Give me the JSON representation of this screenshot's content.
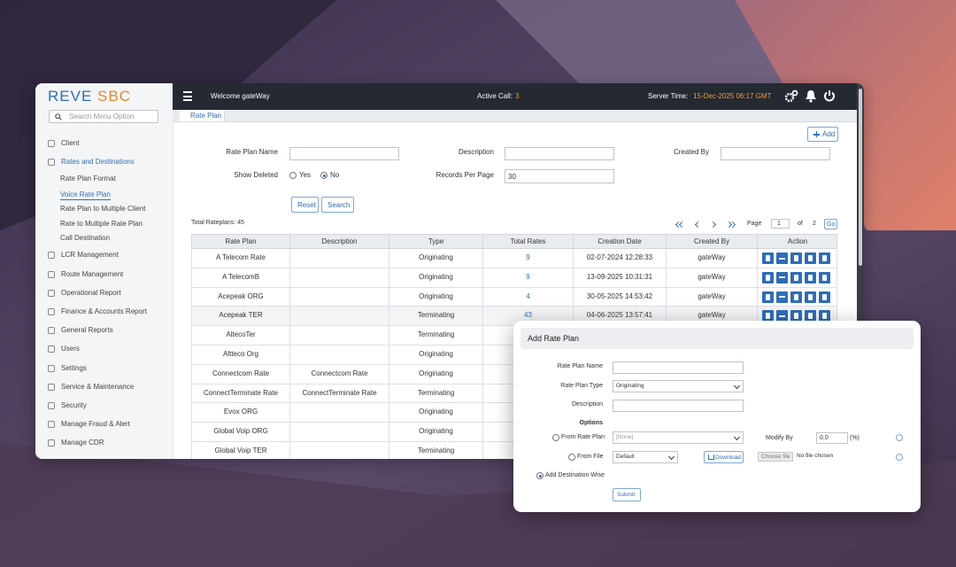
{
  "brand": {
    "name": "REVE",
    "suffix": "SBC"
  },
  "sidebar": {
    "search_placeholder": "Search Menu Option",
    "menu": [
      {
        "label": "Client"
      },
      {
        "label": "Rates and Destinations",
        "submenu": [
          "Rate Plan Format",
          "Voice Rate Plan",
          "Rate Plan to Multiple Client",
          "Rate to Multiple Rate Plan",
          "Call Destination"
        ]
      },
      {
        "label": "LCR Management"
      },
      {
        "label": "Route Management"
      },
      {
        "label": "Operational Report"
      },
      {
        "label": "Finance & Accounts Report"
      },
      {
        "label": "General Reports"
      },
      {
        "label": "Users"
      },
      {
        "label": "Settings"
      },
      {
        "label": "Service & Maintenance"
      },
      {
        "label": "Security"
      },
      {
        "label": "Manage Fraud & Alert"
      },
      {
        "label": "Manage CDR"
      }
    ]
  },
  "topbar": {
    "welcome": "Welcome gateWay",
    "active_call_label": "Active Call:",
    "active_call_value": "3",
    "server_time_label": "Server Time:",
    "server_time_value": "15-Dec-2025 06:17 GMT"
  },
  "tab": "Rate Plan",
  "add_button": "Add",
  "filters": {
    "rate_plan_name": "Rate Plan Name",
    "description": "Description",
    "created_by": "Created By",
    "show_deleted": "Show Deleted",
    "yes": "Yes",
    "no": "No",
    "records_per_page": "Records Per Page",
    "records_value": "30",
    "reset": "Reset",
    "search": "Search"
  },
  "summary": "Total Rateplans: 45",
  "pagination": {
    "page_label": "Page",
    "page": "1",
    "of": "of",
    "total": "2",
    "go": "Go"
  },
  "table": {
    "columns": [
      "Rate Plan",
      "Description",
      "Type",
      "Total Rates",
      "Creation Date",
      "Created By",
      "Action"
    ],
    "rows": [
      [
        "A Telecom Rate",
        null,
        "Originating",
        "9",
        "02-07-2024 12:28:33",
        "gateWay"
      ],
      [
        "A TelecomB",
        null,
        "Originating",
        "9",
        "13-09-2025 10:31:31",
        "gateWay"
      ],
      [
        "Acepeak ORG",
        null,
        "Originating",
        "4",
        "30-05-2025 14:53:42",
        "gateWay"
      ],
      [
        "Acepeak TER",
        null,
        "Terminating",
        "43",
        "04-06-2025 13:57:41",
        "gateWay"
      ],
      [
        "AltecoTer",
        null,
        "Terminating"
      ],
      [
        "Altteco Org",
        null,
        "Originating"
      ],
      [
        "Connectcom Rate",
        "Connectcom Rate",
        "Originating"
      ],
      [
        "ConnectTerminate Rate",
        "ConnectTerminate Rate",
        "Terminating"
      ],
      [
        "Evox ORG",
        null,
        "Originating"
      ],
      [
        "Global Voip ORG",
        null,
        "Originating"
      ],
      [
        "Global Voip TER",
        null,
        "Terminating"
      ]
    ]
  },
  "popup": {
    "title": "Add Rate Plan",
    "rate_plan_name": "Rate Plan Name",
    "rate_plan_type": "Rate Plan Type",
    "rate_plan_type_value": "Originating",
    "description": "Description",
    "options": "Options",
    "from_rate_plan": "From Rate Plan",
    "from_rate_plan_value": "[None]",
    "modify_by": "Modify By",
    "modify_by_value": "0.0",
    "modify_by_unit": "(%)",
    "from_file": "From File",
    "from_file_value": "Default",
    "download": "Download",
    "choose_file": "Choose file",
    "no_file": "No file chosen",
    "add_destination_wise": "Add Destination Wise",
    "submit": "Submit"
  }
}
